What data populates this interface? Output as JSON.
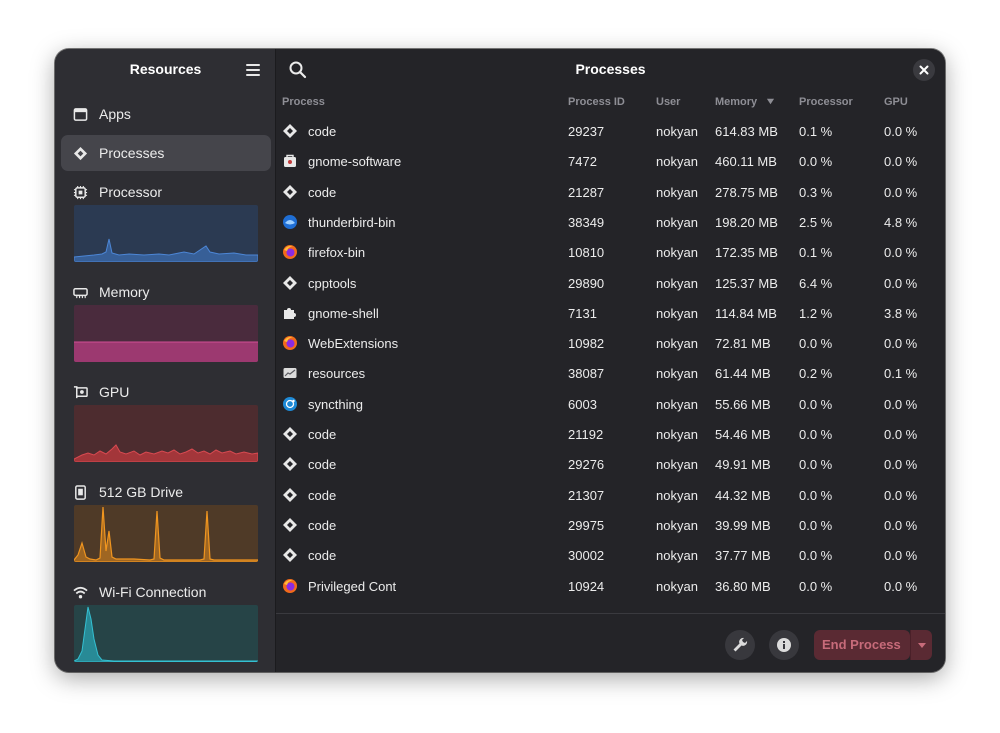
{
  "sidebar": {
    "title": "Resources",
    "nav": [
      {
        "label": "Apps",
        "icon": "window-icon"
      },
      {
        "label": "Processes",
        "icon": "process-icon",
        "active": true
      }
    ],
    "resources": [
      {
        "label": "Processor",
        "icon": "cpu-icon",
        "color": "#3d6fb5",
        "bg": "#2b3a52"
      },
      {
        "label": "Memory",
        "icon": "memory-icon",
        "color": "#b03d7d",
        "bg": "#4a2b3d"
      },
      {
        "label": "GPU",
        "icon": "gpu-icon",
        "color": "#c0393f",
        "bg": "#4d2c2f"
      },
      {
        "label": "512 GB Drive",
        "icon": "drive-icon",
        "color": "#e28a1f",
        "bg": "#4f3a27"
      },
      {
        "label": "Wi-Fi Connection",
        "icon": "wifi-icon",
        "color": "#2aa8b8",
        "bg": "#264447"
      }
    ]
  },
  "main": {
    "title": "Processes",
    "columns": {
      "process": "Process",
      "pid": "Process ID",
      "user": "User",
      "memory": "Memory",
      "processor": "Processor",
      "gpu": "GPU"
    },
    "sort_column": "Memory",
    "rows": [
      {
        "name": "code",
        "icon": "vscode-icon",
        "pid": "29237",
        "user": "nokyan",
        "memory": "614.83 MB",
        "cpu": "0.1 %",
        "gpu": "0.0 %"
      },
      {
        "name": "gnome-software",
        "icon": "software-icon",
        "pid": "7472",
        "user": "nokyan",
        "memory": "460.11 MB",
        "cpu": "0.0 %",
        "gpu": "0.0 %"
      },
      {
        "name": "code",
        "icon": "vscode-icon",
        "pid": "21287",
        "user": "nokyan",
        "memory": "278.75 MB",
        "cpu": "0.3 %",
        "gpu": "0.0 %"
      },
      {
        "name": "thunderbird-bin",
        "icon": "thunderbird-icon",
        "pid": "38349",
        "user": "nokyan",
        "memory": "198.20 MB",
        "cpu": "2.5 %",
        "gpu": "4.8 %"
      },
      {
        "name": "firefox-bin",
        "icon": "firefox-icon",
        "pid": "10810",
        "user": "nokyan",
        "memory": "172.35 MB",
        "cpu": "0.1 %",
        "gpu": "0.0 %"
      },
      {
        "name": "cpptools",
        "icon": "vscode-icon",
        "pid": "29890",
        "user": "nokyan",
        "memory": "125.37 MB",
        "cpu": "6.4 %",
        "gpu": "0.0 %"
      },
      {
        "name": "gnome-shell",
        "icon": "puzzle-icon",
        "pid": "7131",
        "user": "nokyan",
        "memory": "114.84 MB",
        "cpu": "1.2 %",
        "gpu": "3.8 %"
      },
      {
        "name": "WebExtensions",
        "icon": "firefox-icon",
        "pid": "10982",
        "user": "nokyan",
        "memory": "72.81 MB",
        "cpu": "0.0 %",
        "gpu": "0.0 %"
      },
      {
        "name": "resources",
        "icon": "resources-icon",
        "pid": "38087",
        "user": "nokyan",
        "memory": "61.44 MB",
        "cpu": "0.2 %",
        "gpu": "0.1 %"
      },
      {
        "name": "syncthing",
        "icon": "syncthing-icon",
        "pid": "6003",
        "user": "nokyan",
        "memory": "55.66 MB",
        "cpu": "0.0 %",
        "gpu": "0.0 %"
      },
      {
        "name": "code",
        "icon": "vscode-icon",
        "pid": "21192",
        "user": "nokyan",
        "memory": "54.46 MB",
        "cpu": "0.0 %",
        "gpu": "0.0 %"
      },
      {
        "name": "code",
        "icon": "vscode-icon",
        "pid": "29276",
        "user": "nokyan",
        "memory": "49.91 MB",
        "cpu": "0.0 %",
        "gpu": "0.0 %"
      },
      {
        "name": "code",
        "icon": "vscode-icon",
        "pid": "21307",
        "user": "nokyan",
        "memory": "44.32 MB",
        "cpu": "0.0 %",
        "gpu": "0.0 %"
      },
      {
        "name": "code",
        "icon": "vscode-icon",
        "pid": "29975",
        "user": "nokyan",
        "memory": "39.99 MB",
        "cpu": "0.0 %",
        "gpu": "0.0 %"
      },
      {
        "name": "code",
        "icon": "vscode-icon",
        "pid": "30002",
        "user": "nokyan",
        "memory": "37.77 MB",
        "cpu": "0.0 %",
        "gpu": "0.0 %"
      },
      {
        "name": "Privileged Cont",
        "icon": "firefox-icon",
        "pid": "10924",
        "user": "nokyan",
        "memory": "36.80 MB",
        "cpu": "0.0 %",
        "gpu": "0.0 %"
      }
    ]
  },
  "footer": {
    "end_process_label": "End Process",
    "danger_color": "#c76b7a"
  }
}
